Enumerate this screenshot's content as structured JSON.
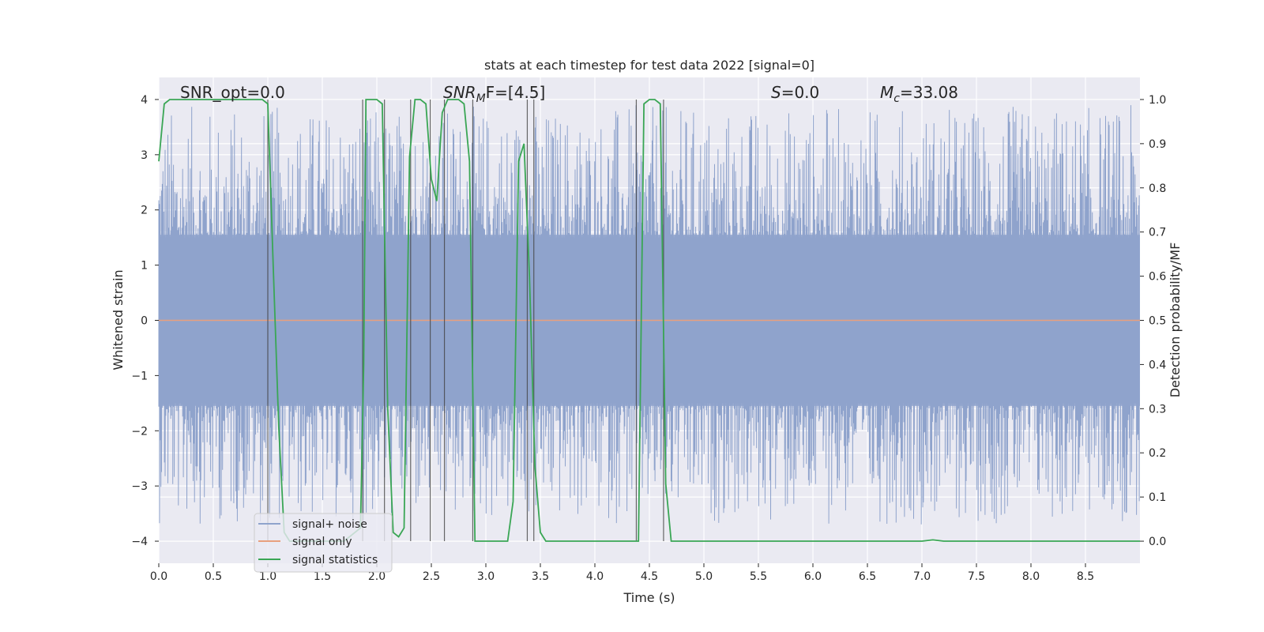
{
  "chart_data": {
    "type": "line",
    "title": "stats at each timestep for test data 2022 [signal=0]",
    "xlabel": "Time (s)",
    "ylabel_left": "Whitened strain",
    "ylabel_right": "Detection probability/MF",
    "xlim": [
      0,
      9.0
    ],
    "ylim_left": [
      -4.4,
      4.4
    ],
    "ylim_right": [
      -0.05,
      1.05
    ],
    "x_ticks": [
      "0.0",
      "0.5",
      "1.0",
      "1.5",
      "2.0",
      "2.5",
      "3.0",
      "3.5",
      "4.0",
      "4.5",
      "5.0",
      "5.5",
      "6.0",
      "6.5",
      "7.0",
      "7.5",
      "8.0",
      "8.5"
    ],
    "y_ticks_left": [
      "−4",
      "−3",
      "−2",
      "−1",
      "0",
      "1",
      "2",
      "3",
      "4"
    ],
    "y_ticks_right": [
      "0.0",
      "0.1",
      "0.2",
      "0.3",
      "0.4",
      "0.5",
      "0.6",
      "0.7",
      "0.8",
      "0.9",
      "1.0"
    ],
    "grid": true,
    "legend_placement": "lower-left",
    "annotations": {
      "snr_opt": "SNR_opt=0.0",
      "snr_mf_base": "SNR",
      "snr_mf_sub": "M",
      "snr_mf_rest": "F=[4.5]",
      "s_var": "S",
      "s_rest": "=0.0",
      "mc_var": "M",
      "mc_sub": "c",
      "mc_rest": "=33.08"
    },
    "vertical_lines_x": [
      1.0,
      1.87,
      2.07,
      2.31,
      2.49,
      2.62,
      2.88,
      3.38,
      3.44,
      4.38,
      4.63
    ],
    "series": [
      {
        "name": "signal+ noise",
        "color": "#8fa3cc",
        "description_values": "noise band approx ±1.6 envelope with spikes up to ±4"
      },
      {
        "name": "signal only",
        "color": "#e8a07e",
        "values_constant": 0
      },
      {
        "name": "signal statistics",
        "color": "#3aa655",
        "x": [
          0.0,
          0.05,
          0.1,
          0.2,
          0.5,
          0.8,
          0.95,
          1.0,
          1.05,
          1.1,
          1.15,
          1.2,
          1.7,
          1.85,
          1.88,
          1.9,
          1.95,
          2.0,
          2.05,
          2.1,
          2.15,
          2.2,
          2.25,
          2.3,
          2.35,
          2.4,
          2.45,
          2.5,
          2.55,
          2.6,
          2.65,
          2.7,
          2.75,
          2.8,
          2.85,
          2.9,
          2.95,
          3.0,
          3.05,
          3.1,
          3.2,
          3.25,
          3.3,
          3.35,
          3.4,
          3.45,
          3.5,
          3.55,
          3.6,
          3.65,
          3.7,
          4.0,
          4.35,
          4.4,
          4.45,
          4.5,
          4.55,
          4.6,
          4.65,
          4.7,
          4.75,
          4.8,
          5.5,
          7.0,
          7.1,
          7.2,
          9.0
        ],
        "values": [
          0.86,
          0.99,
          1.0,
          1.0,
          1.0,
          1.0,
          1.0,
          0.99,
          0.62,
          0.26,
          0.02,
          0.0,
          0.0,
          0.03,
          0.4,
          1.0,
          1.0,
          1.0,
          0.99,
          0.3,
          0.02,
          0.01,
          0.03,
          0.87,
          1.0,
          1.0,
          0.99,
          0.82,
          0.77,
          0.97,
          1.0,
          1.0,
          1.0,
          0.99,
          0.86,
          0.0,
          0.0,
          0.0,
          0.0,
          0.0,
          0.0,
          0.09,
          0.86,
          0.9,
          0.6,
          0.17,
          0.02,
          0.0,
          0.0,
          0.0,
          0.0,
          0.0,
          0.0,
          0.0,
          0.99,
          1.0,
          1.0,
          0.99,
          0.13,
          0.0,
          0.0,
          0.0,
          0.0,
          0.0,
          0.003,
          0.0,
          0.0
        ]
      }
    ]
  }
}
